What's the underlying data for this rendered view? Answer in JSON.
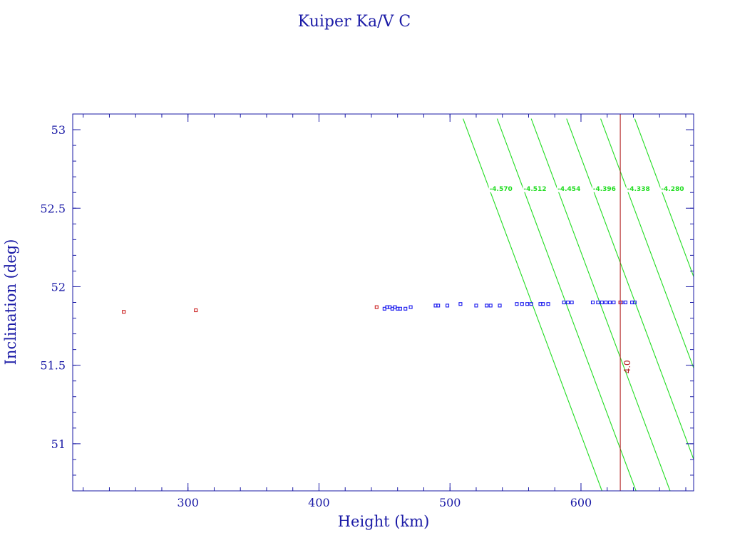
{
  "chart_data": {
    "type": "scatter",
    "title": "Kuiper Ka/V C",
    "xlabel": "Height (km)",
    "ylabel": "Inclination (deg)",
    "xlim": [
      212,
      686
    ],
    "ylim": [
      50.7,
      53.1
    ],
    "x_ticks": [
      300,
      400,
      500,
      600
    ],
    "y_ticks": [
      51,
      51.5,
      52,
      52.5,
      53
    ],
    "x_tick_labels": [
      "300",
      "400",
      "500",
      "600"
    ],
    "y_tick_labels": [
      "51",
      "51.5",
      "52",
      "52.5",
      "53"
    ],
    "x_minor_step": 20,
    "y_minor_step": 0.1,
    "grid": false,
    "colors": {
      "axes": "#1a1aa6",
      "blue_points": "#1a1aee",
      "red_points": "#cc2222",
      "contours": "#22dd22",
      "vertical_line": "#b22222"
    },
    "series": [
      {
        "color": "blue",
        "points": [
          [
            450,
            51.86
          ],
          [
            452,
            51.87
          ],
          [
            454,
            51.87
          ],
          [
            456,
            51.86
          ],
          [
            458,
            51.87
          ],
          [
            460,
            51.86
          ],
          [
            462,
            51.86
          ],
          [
            466,
            51.86
          ],
          [
            470,
            51.87
          ],
          [
            489,
            51.88
          ],
          [
            491,
            51.88
          ],
          [
            498,
            51.88
          ],
          [
            508,
            51.89
          ],
          [
            520,
            51.88
          ],
          [
            528,
            51.88
          ],
          [
            531,
            51.88
          ],
          [
            538,
            51.88
          ],
          [
            551,
            51.89
          ],
          [
            555,
            51.89
          ],
          [
            559,
            51.89
          ],
          [
            562,
            51.89
          ],
          [
            569,
            51.89
          ],
          [
            571,
            51.89
          ],
          [
            575,
            51.89
          ],
          [
            587,
            51.9
          ],
          [
            590,
            51.9
          ],
          [
            593,
            51.9
          ],
          [
            609,
            51.9
          ],
          [
            613,
            51.9
          ],
          [
            616,
            51.9
          ],
          [
            619,
            51.9
          ],
          [
            622,
            51.9
          ],
          [
            625,
            51.9
          ],
          [
            631,
            51.9
          ],
          [
            634,
            51.9
          ],
          [
            639,
            51.9
          ],
          [
            641,
            51.9
          ]
        ]
      },
      {
        "color": "red",
        "points": [
          [
            251,
            51.84
          ],
          [
            306,
            51.85
          ],
          [
            444,
            51.87
          ],
          [
            630,
            51.9
          ]
        ]
      }
    ],
    "contours": [
      {
        "label": "-4.570",
        "points": [
          [
            510,
            53.07
          ],
          [
            616,
            50.7
          ]
        ]
      },
      {
        "label": "-4.512",
        "points": [
          [
            536,
            53.07
          ],
          [
            642,
            50.7
          ]
        ]
      },
      {
        "label": "-4.454",
        "points": [
          [
            562,
            53.07
          ],
          [
            668,
            50.7
          ]
        ]
      },
      {
        "label": "-4.396",
        "points": [
          [
            589,
            53.07
          ],
          [
            695,
            50.7
          ]
        ]
      },
      {
        "label": "-4.338",
        "points": [
          [
            615,
            53.07
          ],
          [
            721,
            50.7
          ]
        ]
      },
      {
        "label": "-4.280",
        "points": [
          [
            641,
            53.07
          ],
          [
            747,
            50.7
          ]
        ]
      }
    ],
    "contour_label_y": 52.62,
    "vertical_line": {
      "x": 630,
      "label": "4.0",
      "label_y": 51.49
    }
  }
}
